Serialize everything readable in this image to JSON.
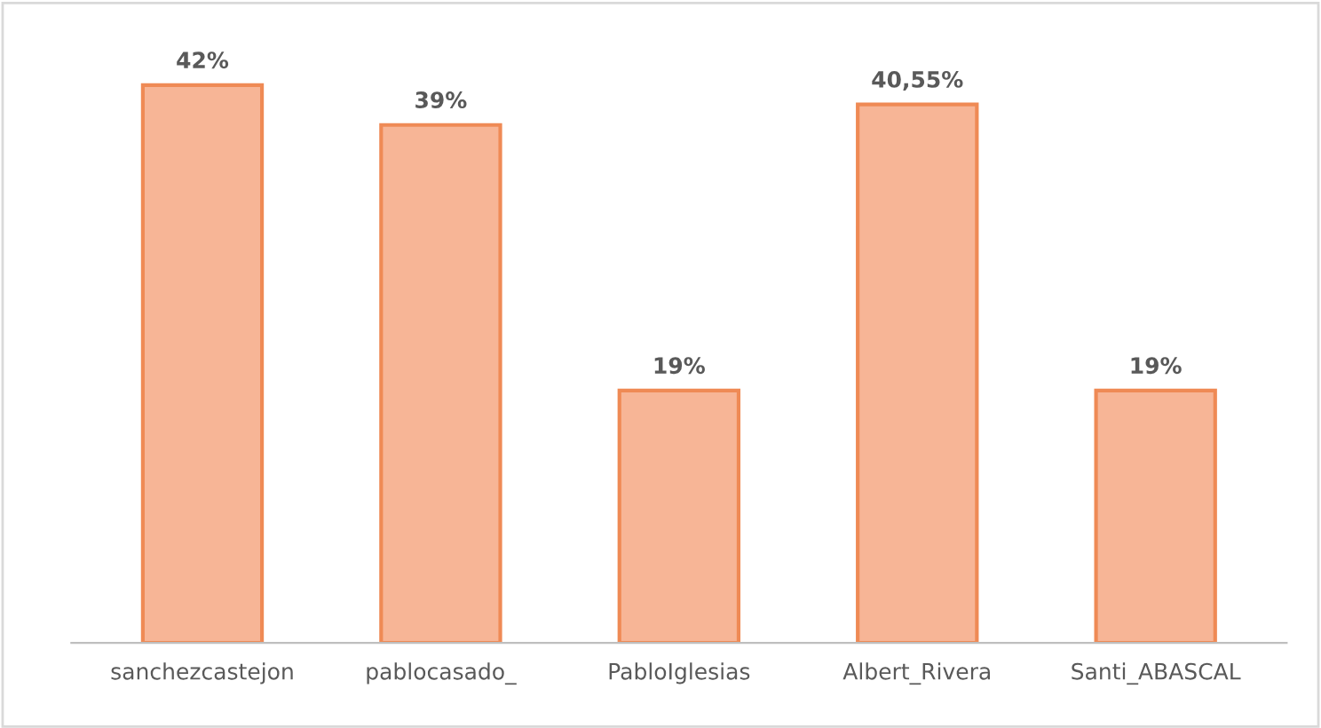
{
  "chart_data": {
    "type": "bar",
    "categories": [
      "sanchezcastejon",
      "pablocasado_",
      "PabloIglesias",
      "Albert_Rivera",
      "Santi_ABASCAL"
    ],
    "values": [
      42,
      39,
      19,
      40.55,
      19
    ],
    "value_labels": [
      "42%",
      "39%",
      "19%",
      "40,55%",
      "19%"
    ],
    "color": "#f7b596"
  }
}
